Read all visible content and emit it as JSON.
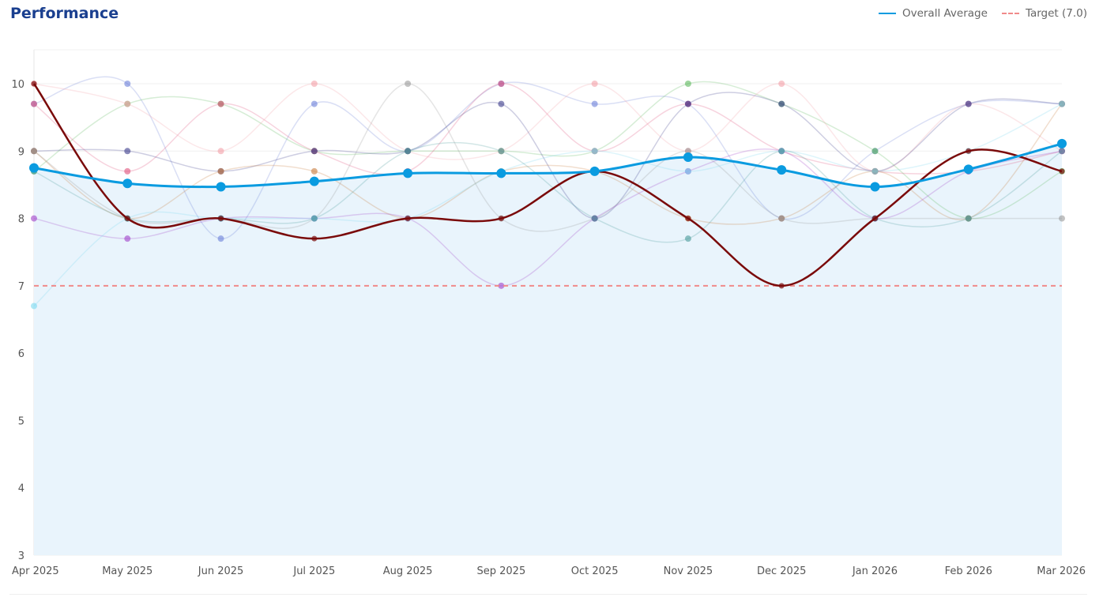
{
  "header": {
    "title": "Performance"
  },
  "chart_data": {
    "type": "line",
    "title": "Performance",
    "xlabel": "",
    "ylabel": "",
    "categories": [
      "Apr 2025",
      "May 2025",
      "Jun 2025",
      "Jul 2025",
      "Aug 2025",
      "Sep 2025",
      "Oct 2025",
      "Nov 2025",
      "Dec 2025",
      "Jan 2026",
      "Feb 2026",
      "Mar 2026"
    ],
    "ylim": [
      3,
      10
    ],
    "yticks": [
      3,
      4,
      5,
      6,
      7,
      8,
      9,
      10
    ],
    "grid": true,
    "legend_position": "top-right",
    "legend": [
      {
        "label": "Overall Average",
        "color": "#0a9be0",
        "style": "solid"
      },
      {
        "label": "Target (7.0)",
        "color": "#f08a8a",
        "style": "dashed"
      }
    ],
    "average": {
      "name": "Overall Average",
      "color": "#0a9be0",
      "values": [
        8.75,
        8.52,
        8.47,
        8.55,
        8.67,
        8.67,
        8.7,
        8.91,
        8.72,
        8.47,
        8.73,
        9.11
      ]
    },
    "target": {
      "name": "Target (7.0)",
      "value": 7.0,
      "color": "#f08a8a"
    },
    "highlighted": {
      "color": "#7a0a0a",
      "values": [
        10,
        8,
        8,
        7.7,
        8,
        8,
        8.7,
        8,
        7,
        8,
        9,
        8.7
      ]
    },
    "series": [
      {
        "color": "#6a7fd8",
        "values": [
          9.7,
          10,
          7.7,
          9.7,
          9,
          10,
          9.7,
          9.7,
          8,
          9,
          9.7,
          9.7
        ]
      },
      {
        "color": "#5bb85b",
        "values": [
          8.7,
          9.7,
          9.7,
          9,
          9,
          9,
          9,
          10,
          9.7,
          9,
          8,
          8.7
        ]
      },
      {
        "color": "#e0507a",
        "values": [
          9.7,
          8.7,
          9.7,
          9,
          8.7,
          10,
          9,
          9.7,
          9,
          8.7,
          8.7,
          9
        ]
      },
      {
        "color": "#f4a0a8",
        "values": [
          10,
          9.7,
          9,
          10,
          9,
          9,
          10,
          9,
          10,
          8.7,
          9.7,
          9
        ]
      },
      {
        "color": "#3a3a8a",
        "values": [
          9,
          9,
          8.7,
          9,
          9,
          9.7,
          8,
          9.7,
          9.7,
          8.7,
          9.7,
          9.7
        ]
      },
      {
        "color": "#c87a3a",
        "values": [
          9,
          8,
          8.7,
          8.7,
          8,
          8.7,
          8.7,
          8,
          8,
          8.7,
          8,
          9.7
        ]
      },
      {
        "color": "#999999",
        "values": [
          9,
          8,
          8,
          8,
          10,
          8,
          8,
          9,
          8,
          8,
          8,
          8
        ]
      },
      {
        "color": "#a040c8",
        "values": [
          8,
          7.7,
          8,
          8,
          8,
          7,
          8,
          8.7,
          9,
          8,
          8.7,
          9
        ]
      },
      {
        "color": "#7ad8f0",
        "values": [
          6.7,
          8,
          8,
          8,
          8,
          8.7,
          9,
          8.7,
          9,
          8.7,
          9,
          9.7
        ]
      },
      {
        "color": "#4a9a9a",
        "values": [
          8.7,
          8,
          8,
          8,
          9,
          9,
          8,
          7.7,
          9,
          8,
          8,
          9
        ]
      }
    ]
  }
}
